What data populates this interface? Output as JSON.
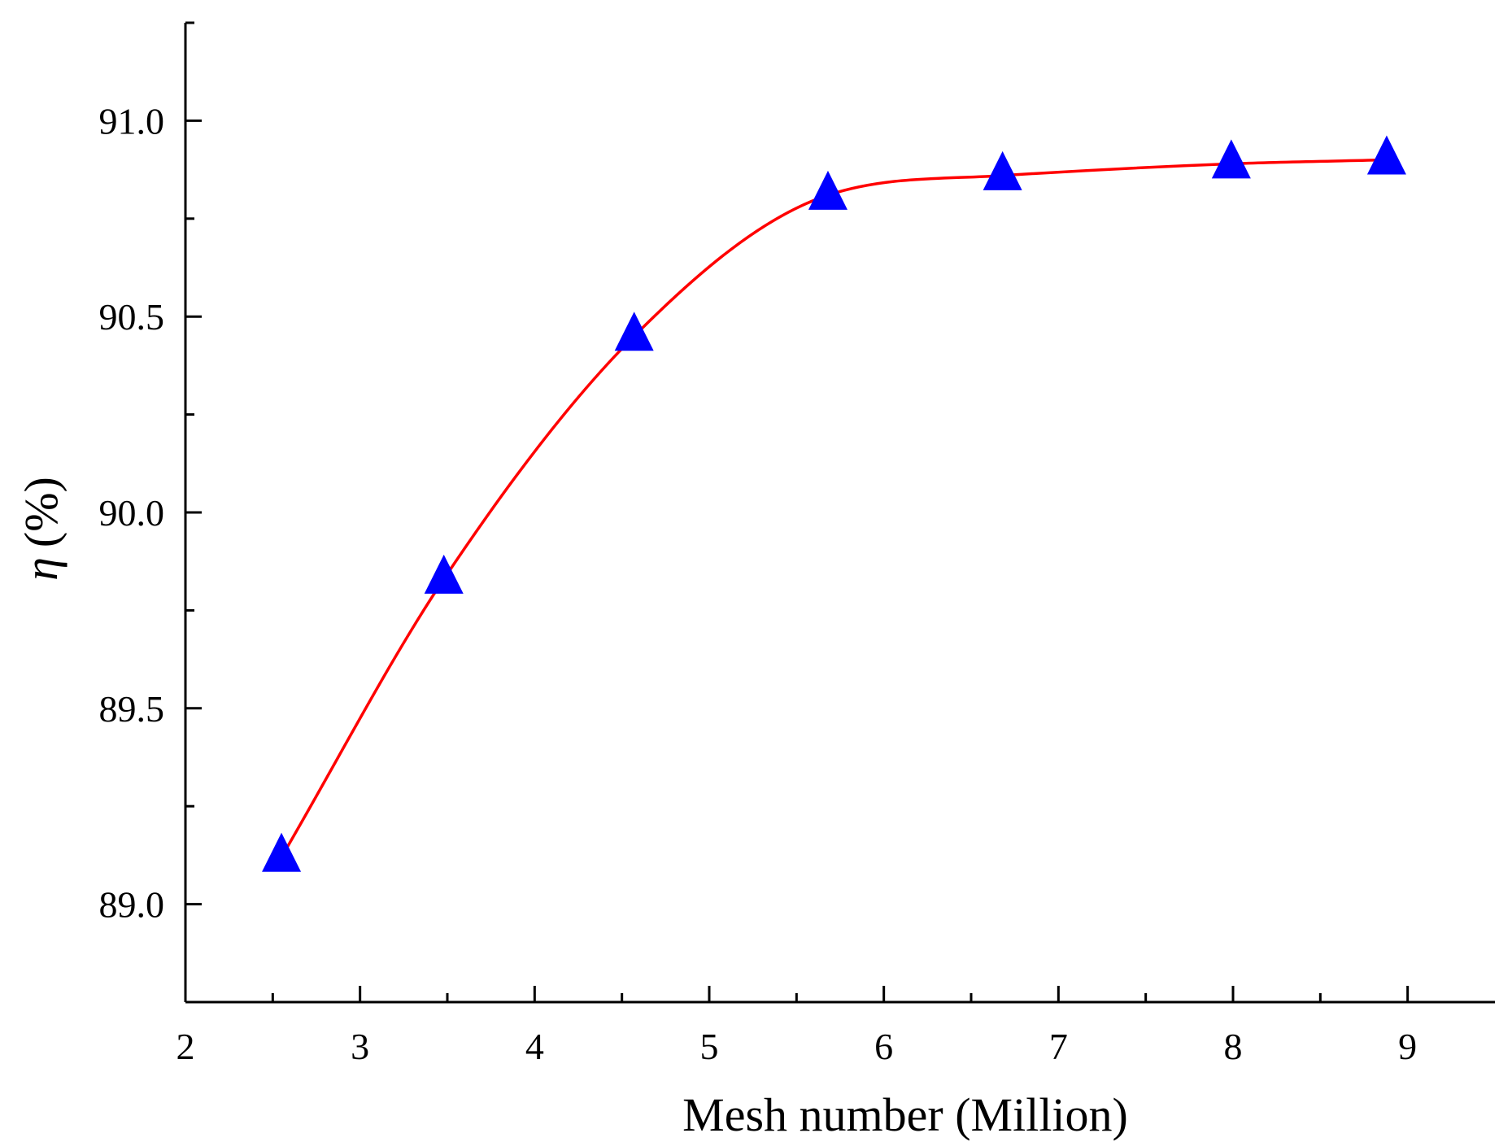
{
  "chart_data": {
    "type": "line",
    "xlabel": "Mesh number (Million)",
    "ylabel_symbol": "η",
    "ylabel_unit": "(%)",
    "xlim": [
      2,
      9.5
    ],
    "ylim": [
      88.75,
      91.25
    ],
    "x_ticks": [
      2,
      3,
      4,
      5,
      6,
      7,
      8,
      9
    ],
    "y_ticks": [
      89.0,
      89.5,
      90.0,
      90.5,
      91.0
    ],
    "x_tick_labels": [
      "2",
      "3",
      "4",
      "5",
      "6",
      "7",
      "8",
      "9"
    ],
    "y_tick_labels": [
      "89.0",
      "89.5",
      "90.0",
      "90.5",
      "91.0"
    ],
    "grid": false,
    "series": [
      {
        "marker": "triangle",
        "line": "smooth",
        "x": [
          2.55,
          3.48,
          4.57,
          5.68,
          6.68,
          7.99,
          8.88
        ],
        "y": [
          89.12,
          89.83,
          90.45,
          90.81,
          90.86,
          90.89,
          90.9
        ]
      }
    ],
    "colors": {
      "line": "#ff0000",
      "marker": "#0000ff",
      "axis": "#000000"
    }
  }
}
